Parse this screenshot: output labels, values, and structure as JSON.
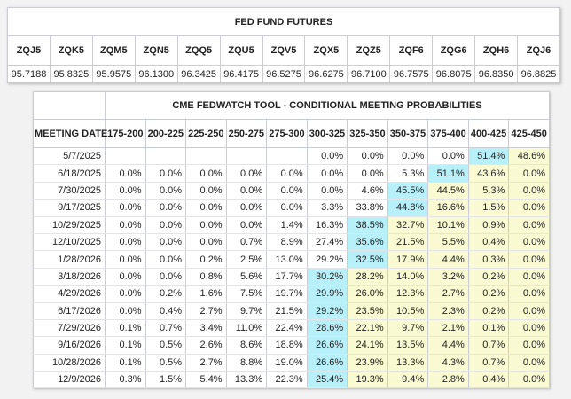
{
  "futures": {
    "title": "FED FUND FUTURES",
    "codes": [
      "ZQJ5",
      "ZQK5",
      "ZQM5",
      "ZQN5",
      "ZQQ5",
      "ZQU5",
      "ZQV5",
      "ZQX5",
      "ZQZ5",
      "ZQF6",
      "ZQG6",
      "ZQH6",
      "ZQJ6"
    ],
    "prices": [
      "95.7188",
      "95.8325",
      "95.9575",
      "96.1300",
      "96.3425",
      "96.4175",
      "96.5275",
      "96.6275",
      "96.7100",
      "96.7575",
      "96.8075",
      "96.8350",
      "96.8825"
    ]
  },
  "fedwatch": {
    "title": "CME FEDWATCH TOOL - CONDITIONAL MEETING PROBABILITIES",
    "date_header": "MEETING DATE",
    "ranges": [
      "175-200",
      "200-225",
      "225-250",
      "250-275",
      "275-300",
      "300-325",
      "325-350",
      "350-375",
      "375-400",
      "400-425",
      "425-450"
    ],
    "colors": {
      "max": "#b8f0fa",
      "above": "#f9f9d2"
    },
    "rows": [
      {
        "date": "5/7/2025",
        "max_index": 9,
        "values": [
          "",
          "",
          "",
          "",
          "",
          "0.0%",
          "0.0%",
          "0.0%",
          "0.0%",
          "51.4%",
          "48.6%"
        ]
      },
      {
        "date": "6/18/2025",
        "max_index": 8,
        "values": [
          "0.0%",
          "0.0%",
          "0.0%",
          "0.0%",
          "0.0%",
          "0.0%",
          "0.0%",
          "5.3%",
          "51.1%",
          "43.6%",
          "0.0%"
        ]
      },
      {
        "date": "7/30/2025",
        "max_index": 7,
        "values": [
          "0.0%",
          "0.0%",
          "0.0%",
          "0.0%",
          "0.0%",
          "0.0%",
          "4.6%",
          "45.5%",
          "44.5%",
          "5.3%",
          "0.0%"
        ]
      },
      {
        "date": "9/17/2025",
        "max_index": 7,
        "values": [
          "0.0%",
          "0.0%",
          "0.0%",
          "0.0%",
          "0.0%",
          "3.3%",
          "33.8%",
          "44.8%",
          "16.6%",
          "1.5%",
          "0.0%"
        ]
      },
      {
        "date": "10/29/2025",
        "max_index": 6,
        "values": [
          "0.0%",
          "0.0%",
          "0.0%",
          "0.0%",
          "1.4%",
          "16.3%",
          "38.5%",
          "32.7%",
          "10.1%",
          "0.9%",
          "0.0%"
        ]
      },
      {
        "date": "12/10/2025",
        "max_index": 6,
        "values": [
          "0.0%",
          "0.0%",
          "0.0%",
          "0.7%",
          "8.9%",
          "27.4%",
          "35.6%",
          "21.5%",
          "5.5%",
          "0.4%",
          "0.0%"
        ]
      },
      {
        "date": "1/28/2026",
        "max_index": 6,
        "values": [
          "0.0%",
          "0.0%",
          "0.2%",
          "2.5%",
          "13.0%",
          "29.2%",
          "32.5%",
          "17.9%",
          "4.4%",
          "0.3%",
          "0.0%"
        ]
      },
      {
        "date": "3/18/2026",
        "max_index": 5,
        "values": [
          "0.0%",
          "0.0%",
          "0.8%",
          "5.6%",
          "17.7%",
          "30.2%",
          "28.2%",
          "14.0%",
          "3.2%",
          "0.2%",
          "0.0%"
        ]
      },
      {
        "date": "4/29/2026",
        "max_index": 5,
        "values": [
          "0.0%",
          "0.2%",
          "1.6%",
          "7.5%",
          "19.7%",
          "29.9%",
          "26.0%",
          "12.3%",
          "2.7%",
          "0.2%",
          "0.0%"
        ]
      },
      {
        "date": "6/17/2026",
        "max_index": 5,
        "values": [
          "0.0%",
          "0.4%",
          "2.7%",
          "9.7%",
          "21.5%",
          "29.2%",
          "23.5%",
          "10.5%",
          "2.3%",
          "0.2%",
          "0.0%"
        ]
      },
      {
        "date": "7/29/2026",
        "max_index": 5,
        "values": [
          "0.1%",
          "0.7%",
          "3.4%",
          "11.0%",
          "22.4%",
          "28.6%",
          "22.1%",
          "9.7%",
          "2.1%",
          "0.1%",
          "0.0%"
        ]
      },
      {
        "date": "9/16/2026",
        "max_index": 5,
        "values": [
          "0.1%",
          "0.5%",
          "2.6%",
          "8.6%",
          "18.8%",
          "26.6%",
          "24.1%",
          "13.5%",
          "4.4%",
          "0.7%",
          "0.0%"
        ]
      },
      {
        "date": "10/28/2026",
        "max_index": 5,
        "values": [
          "0.1%",
          "0.5%",
          "2.7%",
          "8.8%",
          "19.0%",
          "26.6%",
          "23.9%",
          "13.3%",
          "4.3%",
          "0.7%",
          "0.0%"
        ]
      },
      {
        "date": "12/9/2026",
        "max_index": 5,
        "values": [
          "0.3%",
          "1.5%",
          "5.4%",
          "13.3%",
          "22.3%",
          "25.4%",
          "19.3%",
          "9.4%",
          "2.8%",
          "0.4%",
          "0.0%"
        ]
      }
    ]
  }
}
